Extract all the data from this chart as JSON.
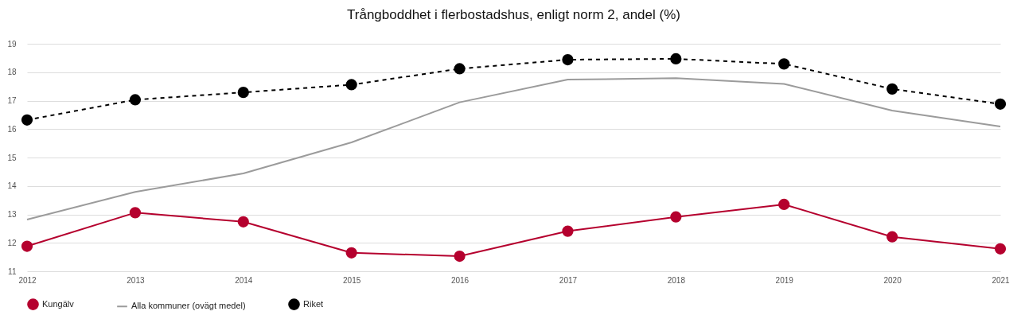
{
  "chart_data": {
    "type": "line",
    "title": "Trångboddhet i flerbostadshus, enligt norm 2, andel (%)",
    "x": [
      2012,
      2013,
      2014,
      2015,
      2016,
      2017,
      2018,
      2019,
      2020,
      2021
    ],
    "xlim": [
      2012,
      2021
    ],
    "xticks": [
      2012,
      2013,
      2014,
      2015,
      2016,
      2017,
      2018,
      2019,
      2020,
      2021
    ],
    "ylim": [
      11,
      19
    ],
    "yticks": [
      11,
      12,
      13,
      14,
      15,
      16,
      17,
      18,
      19
    ],
    "grid": "y",
    "legend": "bottom",
    "series": [
      {
        "name": "Kungälv",
        "color": "#b5002e",
        "marker": "circle",
        "line_style": "solid",
        "values": [
          11.88,
          13.06,
          12.74,
          11.65,
          11.53,
          12.41,
          12.91,
          13.35,
          12.21,
          11.79
        ]
      },
      {
        "name": "Alla kommuner (ovägt medel)",
        "color": "#9b9b9b",
        "marker": "none",
        "line_style": "solid",
        "values": [
          12.82,
          13.79,
          14.44,
          15.53,
          16.94,
          17.74,
          17.79,
          17.59,
          16.65,
          16.09
        ]
      },
      {
        "name": "Riket",
        "color": "#000000",
        "marker": "circle",
        "line_style": "dashed",
        "values": [
          16.32,
          17.03,
          17.29,
          17.56,
          18.12,
          18.44,
          18.47,
          18.29,
          17.41,
          16.88
        ]
      }
    ]
  }
}
